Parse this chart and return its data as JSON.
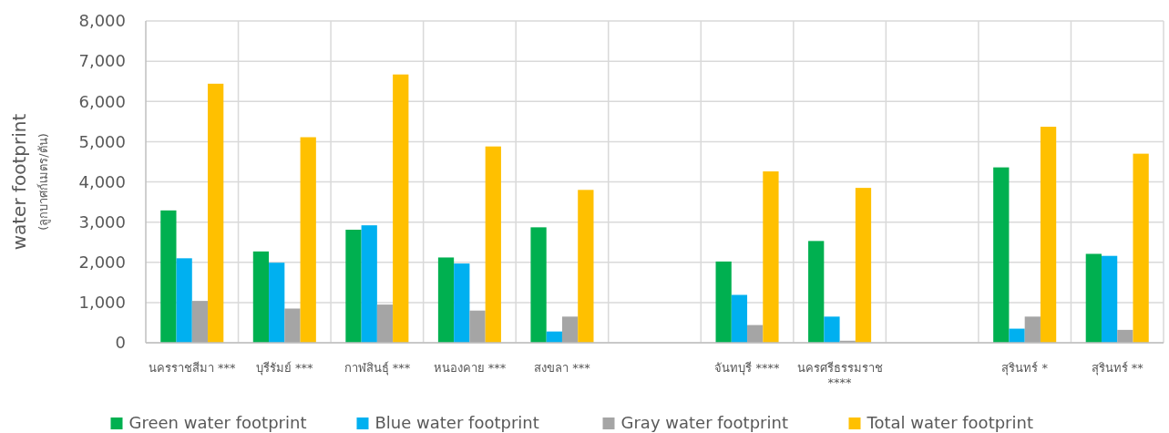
{
  "chart_data": {
    "type": "bar",
    "ylabel": "water footprint\n(ลูกบาศก์เมตร/ตัน)",
    "categories": [
      "นครราชสีมา ***",
      "บุรีรัมย์ ***",
      "กาฬสินธุ์ ***",
      "หนองคาย ***",
      "สงขลา ***",
      null,
      "จันทบุรี ****",
      "นครศรีธรรมราช ****",
      null,
      "สุรินทร์ *",
      "สุรินทร์ **"
    ],
    "series": [
      {
        "name": "Green water footprint",
        "color": "#00b050",
        "values": [
          3290,
          2270,
          2810,
          2120,
          2870,
          null,
          2020,
          2530,
          null,
          4360,
          2210
        ]
      },
      {
        "name": "Blue water footprint",
        "color": "#00b0f0",
        "values": [
          2100,
          1990,
          2920,
          1970,
          280,
          null,
          1190,
          650,
          null,
          350,
          2160
        ]
      },
      {
        "name": "Gray water footprint",
        "color": "#a5a5a5",
        "values": [
          1040,
          850,
          950,
          800,
          650,
          null,
          440,
          50,
          null,
          650,
          320
        ]
      },
      {
        "name": "Total water footprint",
        "color": "#ffc000",
        "values": [
          6440,
          5110,
          6670,
          4880,
          3800,
          null,
          4260,
          3850,
          null,
          5370,
          4700
        ]
      }
    ],
    "ylim": [
      0,
      8000
    ],
    "yticks": [
      {
        "value": 0,
        "label": "0"
      },
      {
        "value": 1000,
        "label": "1,000"
      },
      {
        "value": 2000,
        "label": "2,000"
      },
      {
        "value": 3000,
        "label": "3,000"
      },
      {
        "value": 4000,
        "label": "4,000"
      },
      {
        "value": 5000,
        "label": "5,000"
      },
      {
        "value": 6000,
        "label": "6,000"
      },
      {
        "value": 7000,
        "label": "7,000"
      },
      {
        "value": 8000,
        "label": "8,000"
      }
    ],
    "grid": true,
    "legend": "bottom"
  }
}
